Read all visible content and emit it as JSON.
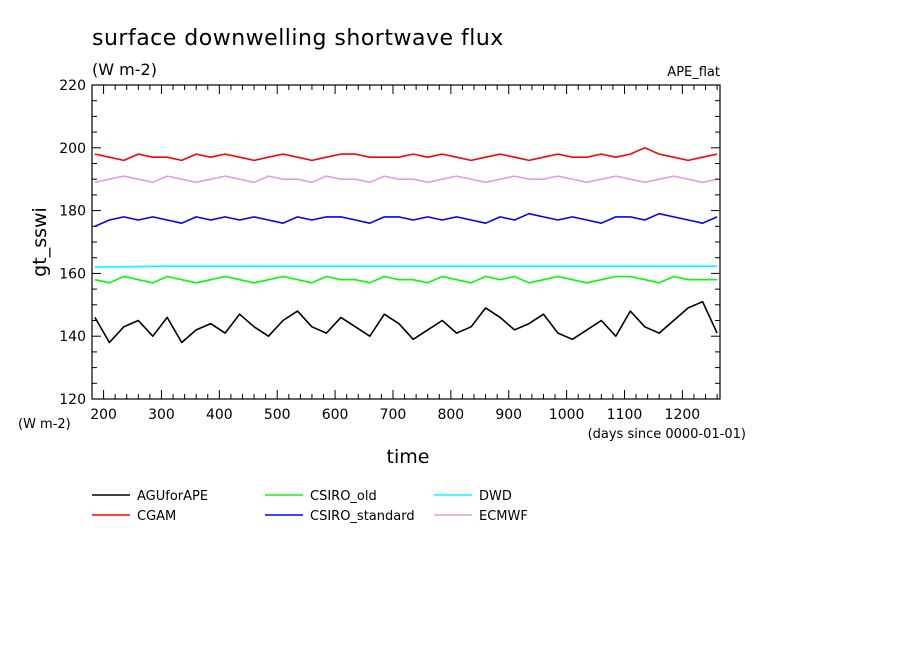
{
  "chart_data": {
    "type": "line",
    "title": "surface downwelling shortwave flux",
    "units": "(W m-2)",
    "experiment": "APE_flat",
    "xlabel": "time",
    "x_units_note": "(days since 0000-01-01)",
    "ylabel": "gt_sswi",
    "y_units_note": "(W m-2)",
    "xlim": [
      180,
      1265
    ],
    "ylim": [
      120,
      220
    ],
    "x_ticks": [
      200,
      300,
      400,
      500,
      600,
      700,
      800,
      900,
      1000,
      1100,
      1200
    ],
    "x_tick_labels": [
      "200",
      "300",
      "400",
      "500",
      "600",
      "700",
      "800",
      "900",
      "1000",
      "1100",
      "1200"
    ],
    "y_ticks": [
      120,
      140,
      160,
      180,
      200,
      220
    ],
    "y_tick_labels": [
      "120",
      "140",
      "160",
      "180",
      "200",
      "220"
    ],
    "legend_placement": "bottom",
    "series": [
      {
        "name": "AGUforAPE",
        "color": "#000000",
        "x": [
          185,
          210,
          235,
          260,
          285,
          310,
          335,
          360,
          385,
          410,
          435,
          460,
          485,
          510,
          535,
          560,
          585,
          610,
          635,
          660,
          685,
          710,
          735,
          760,
          785,
          810,
          835,
          860,
          885,
          910,
          935,
          960,
          985,
          1010,
          1035,
          1060,
          1085,
          1110,
          1135,
          1160,
          1185,
          1210,
          1235,
          1260
        ],
        "values": [
          146,
          138,
          143,
          145,
          140,
          146,
          138,
          142,
          144,
          141,
          147,
          143,
          140,
          145,
          148,
          143,
          141,
          146,
          143,
          140,
          147,
          144,
          139,
          142,
          145,
          141,
          143,
          149,
          146,
          142,
          144,
          147,
          141,
          139,
          142,
          145,
          140,
          148,
          143,
          141,
          145,
          149,
          151,
          141
        ]
      },
      {
        "name": "CGAM",
        "color": "#ff0000",
        "x": [
          185,
          210,
          235,
          260,
          285,
          310,
          335,
          360,
          385,
          410,
          435,
          460,
          485,
          510,
          535,
          560,
          585,
          610,
          635,
          660,
          685,
          710,
          735,
          760,
          785,
          810,
          835,
          860,
          885,
          910,
          935,
          960,
          985,
          1010,
          1035,
          1060,
          1085,
          1110,
          1135,
          1160,
          1185,
          1210,
          1235,
          1260
        ],
        "values": [
          198,
          197,
          196,
          198,
          197,
          197,
          196,
          198,
          197,
          198,
          197,
          196,
          197,
          198,
          197,
          196,
          197,
          198,
          198,
          197,
          197,
          197,
          198,
          197,
          198,
          197,
          196,
          197,
          198,
          197,
          196,
          197,
          198,
          197,
          197,
          198,
          197,
          198,
          200,
          198,
          197,
          196,
          197,
          198
        ]
      },
      {
        "name": "CSIRO_old",
        "color": "#00ff00",
        "x": [
          185,
          210,
          235,
          260,
          285,
          310,
          335,
          360,
          385,
          410,
          435,
          460,
          485,
          510,
          535,
          560,
          585,
          610,
          635,
          660,
          685,
          710,
          735,
          760,
          785,
          810,
          835,
          860,
          885,
          910,
          935,
          960,
          985,
          1010,
          1035,
          1060,
          1085,
          1110,
          1135,
          1160,
          1185,
          1210,
          1235,
          1260
        ],
        "values": [
          158,
          157,
          159,
          158,
          157,
          159,
          158,
          157,
          158,
          159,
          158,
          157,
          158,
          159,
          158,
          157,
          159,
          158,
          158,
          157,
          159,
          158,
          158,
          157,
          159,
          158,
          157,
          159,
          158,
          159,
          157,
          158,
          159,
          158,
          157,
          158,
          159,
          159,
          158,
          157,
          159,
          158,
          158,
          158
        ]
      },
      {
        "name": "CSIRO_standard",
        "color": "#0000ff",
        "x": [
          185,
          210,
          235,
          260,
          285,
          310,
          335,
          360,
          385,
          410,
          435,
          460,
          485,
          510,
          535,
          560,
          585,
          610,
          635,
          660,
          685,
          710,
          735,
          760,
          785,
          810,
          835,
          860,
          885,
          910,
          935,
          960,
          985,
          1010,
          1035,
          1060,
          1085,
          1110,
          1135,
          1160,
          1185,
          1210,
          1235,
          1260
        ],
        "values": [
          175,
          177,
          178,
          177,
          178,
          177,
          176,
          178,
          177,
          178,
          177,
          178,
          177,
          176,
          178,
          177,
          178,
          178,
          177,
          176,
          178,
          178,
          177,
          178,
          177,
          178,
          177,
          176,
          178,
          177,
          179,
          178,
          177,
          178,
          177,
          176,
          178,
          178,
          177,
          179,
          178,
          177,
          176,
          178
        ]
      },
      {
        "name": "DWD",
        "color": "#00ffff",
        "x": [
          185,
          300,
          400,
          500,
          600,
          700,
          800,
          900,
          1000,
          1100,
          1200,
          1260
        ],
        "values": [
          162,
          162.3,
          162.3,
          162.3,
          162.3,
          162.3,
          162.3,
          162.3,
          162.3,
          162.3,
          162.3,
          162.3
        ]
      },
      {
        "name": "ECMWF",
        "color": "#dda0dd",
        "x": [
          185,
          210,
          235,
          260,
          285,
          310,
          335,
          360,
          385,
          410,
          435,
          460,
          485,
          510,
          535,
          560,
          585,
          610,
          635,
          660,
          685,
          710,
          735,
          760,
          785,
          810,
          835,
          860,
          885,
          910,
          935,
          960,
          985,
          1010,
          1035,
          1060,
          1085,
          1110,
          1135,
          1160,
          1185,
          1210,
          1235,
          1260
        ],
        "values": [
          189,
          190,
          191,
          190,
          189,
          191,
          190,
          189,
          190,
          191,
          190,
          189,
          191,
          190,
          190,
          189,
          191,
          190,
          190,
          189,
          191,
          190,
          190,
          189,
          190,
          191,
          190,
          189,
          190,
          191,
          190,
          190,
          191,
          190,
          189,
          190,
          191,
          190,
          189,
          190,
          191,
          190,
          189,
          190
        ]
      }
    ]
  }
}
